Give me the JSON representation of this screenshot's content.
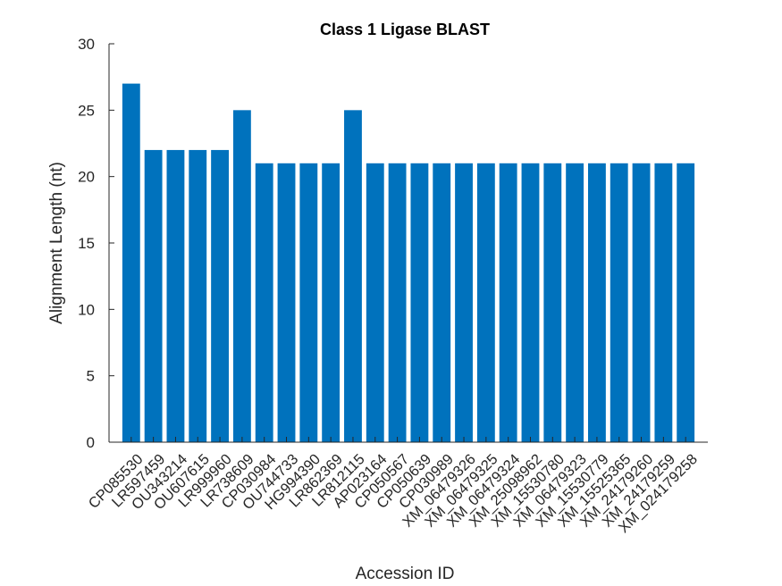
{
  "chart_data": {
    "type": "bar",
    "title": "Class 1 Ligase BLAST",
    "xlabel": "Accession ID",
    "ylabel": "Alignment Length (nt)",
    "ylim": [
      0,
      30
    ],
    "yticks": [
      0,
      5,
      10,
      15,
      20,
      25,
      30
    ],
    "grid": false,
    "bar_color": "#0072BD",
    "categories": [
      "CP085530",
      "LR597459",
      "OU343214",
      "OU607615",
      "LR999960",
      "LR738609",
      "CP030984",
      "OU744733",
      "HG994390",
      "LR862369",
      "LR812115",
      "AP023164",
      "CP050567",
      "CP050639",
      "CP030989",
      "XM_06479326",
      "XM_06479325",
      "XM_06479324",
      "XM_25098962",
      "XM_15530780",
      "XM_06479323",
      "XM_15530779",
      "XM_15525365",
      "XM_24179260",
      "XM_24179259",
      "XM_024179258"
    ],
    "values": [
      27,
      22,
      22,
      22,
      22,
      25,
      21,
      21,
      21,
      21,
      25,
      21,
      21,
      21,
      21,
      21,
      21,
      21,
      21,
      21,
      21,
      21,
      21,
      21,
      21,
      21
    ]
  }
}
